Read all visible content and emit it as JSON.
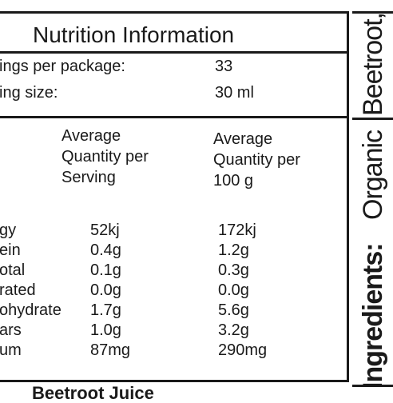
{
  "panel": {
    "title": "Nutrition Information",
    "servings_label": "ings per package:",
    "servings_value": "33",
    "size_label": "ing size:",
    "size_value": "30 ml"
  },
  "headers": {
    "serving": [
      "Average",
      "Quantity per",
      "Serving"
    ],
    "per100": [
      "Average",
      "Quantity per",
      "100 g"
    ]
  },
  "rows": [
    {
      "label": "gy",
      "serving": "52kj",
      "per100": "172kj"
    },
    {
      "label": "ein",
      "serving": "0.4g",
      "per100": "1.2g"
    },
    {
      "label": "otal",
      "serving": "0.1g",
      "per100": "0.3g"
    },
    {
      "label": "rated",
      "serving": "0.0g",
      "per100": "0.0g"
    },
    {
      "label": "ohydrate",
      "serving": "1.7g",
      "per100": "5.6g"
    },
    {
      "label": "ars",
      "serving": "1.0g",
      "per100": "3.2g"
    },
    {
      "label": "um",
      "serving": "87mg",
      "per100": "290mg"
    }
  ],
  "side": {
    "top_text": "Beetroot,",
    "middle_text": "Organic",
    "bottom_text": "Ingredients:"
  },
  "footer": {
    "text": "Beetroot Juice"
  }
}
